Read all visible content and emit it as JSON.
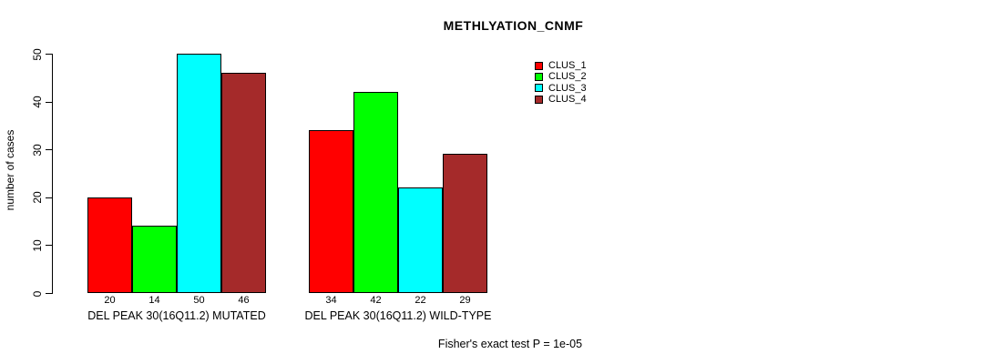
{
  "chart": {
    "title": "METHLYATION_CNMF",
    "ylabel": "number of cases",
    "footnote": "Fisher's exact test P = 1e-05"
  },
  "chart_data": {
    "type": "bar",
    "title": "METHLYATION_CNMF",
    "xlabel": "",
    "ylabel": "number of cases",
    "ylim": [
      0,
      50
    ],
    "yticks": [
      0,
      10,
      20,
      30,
      40,
      50
    ],
    "grid": false,
    "legend_position": "top-right",
    "categories": [
      "DEL PEAK 30(16Q11.2) MUTATED",
      "DEL PEAK 30(16Q11.2) WILD-TYPE"
    ],
    "series": [
      {
        "name": "CLUS_1",
        "color": "#FF0000",
        "values": [
          20,
          34
        ]
      },
      {
        "name": "CLUS_2",
        "color": "#00FF00",
        "values": [
          14,
          42
        ]
      },
      {
        "name": "CLUS_3",
        "color": "#00FFFF",
        "values": [
          50,
          22
        ]
      },
      {
        "name": "CLUS_4",
        "color": "#A52A2A",
        "values": [
          46,
          29
        ]
      }
    ],
    "bar_value_labels": [
      [
        20,
        14,
        50,
        46
      ],
      [
        34,
        42,
        22,
        29
      ]
    ],
    "annotation": "Fisher's exact test P = 1e-05"
  }
}
